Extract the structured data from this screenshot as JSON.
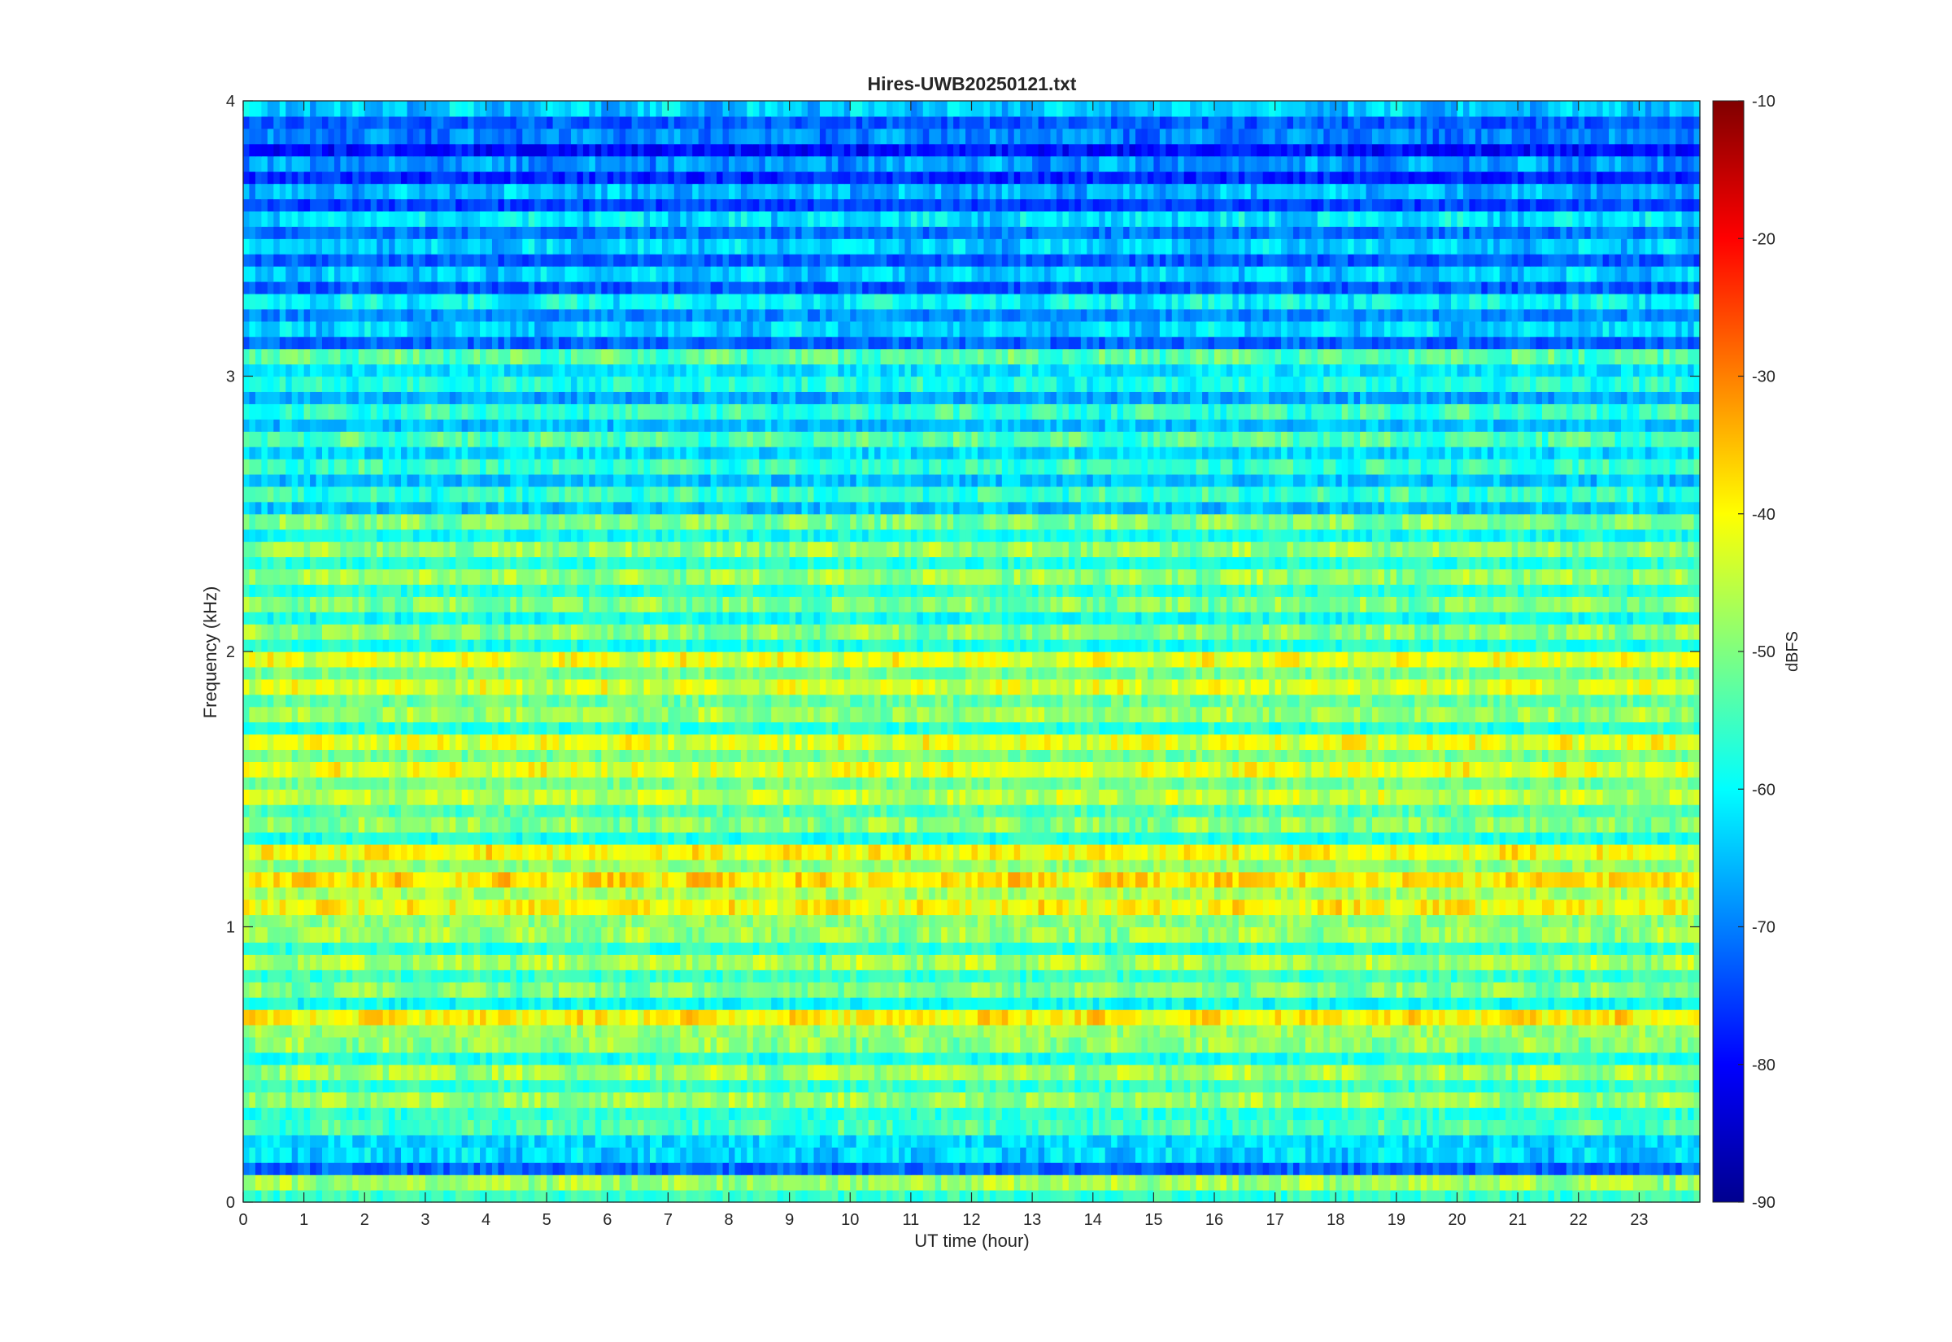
{
  "chart_data": {
    "type": "heatmap",
    "title": "Hires-UWB20250121.txt",
    "xlabel": "UT time (hour)",
    "ylabel": "Frequency (kHz)",
    "xlim": [
      0,
      24
    ],
    "ylim": [
      0,
      4
    ],
    "x_ticks": [
      0,
      1,
      2,
      3,
      4,
      5,
      6,
      7,
      8,
      9,
      10,
      11,
      12,
      13,
      14,
      15,
      16,
      17,
      18,
      19,
      20,
      21,
      22,
      23
    ],
    "y_ticks": [
      0,
      1,
      2,
      3,
      4
    ],
    "colormap": "jet",
    "colorbar": {
      "label": "dBFS",
      "range": [
        -90,
        -10
      ],
      "ticks": [
        -90,
        -80,
        -70,
        -60,
        -50,
        -40,
        -30,
        -20,
        -10
      ]
    },
    "frequency_bands_khz": [
      0.05,
      0.15,
      0.25,
      0.35,
      0.45,
      0.55,
      0.65,
      0.75,
      0.85,
      0.95,
      1.05,
      1.15,
      1.25,
      1.35,
      1.45,
      1.55,
      1.65,
      1.75,
      1.85,
      1.95,
      2.05,
      2.15,
      2.25,
      2.35,
      2.45,
      2.55,
      2.65,
      2.75,
      2.85,
      2.95,
      3.05,
      3.15,
      3.25,
      3.35,
      3.45,
      3.55,
      3.65,
      3.75,
      3.85,
      3.95
    ],
    "band_level_dbfs": [
      -47,
      -63,
      -54,
      -48,
      -47,
      -49,
      -39,
      -50,
      -47,
      -48,
      -40,
      -38,
      -40,
      -49,
      -45,
      -42,
      -42,
      -48,
      -43,
      -42,
      -49,
      -50,
      -48,
      -48,
      -50,
      -56,
      -56,
      -54,
      -56,
      -58,
      -53,
      -63,
      -60,
      -64,
      -64,
      -62,
      -66,
      -68,
      -70,
      -64
    ]
  }
}
